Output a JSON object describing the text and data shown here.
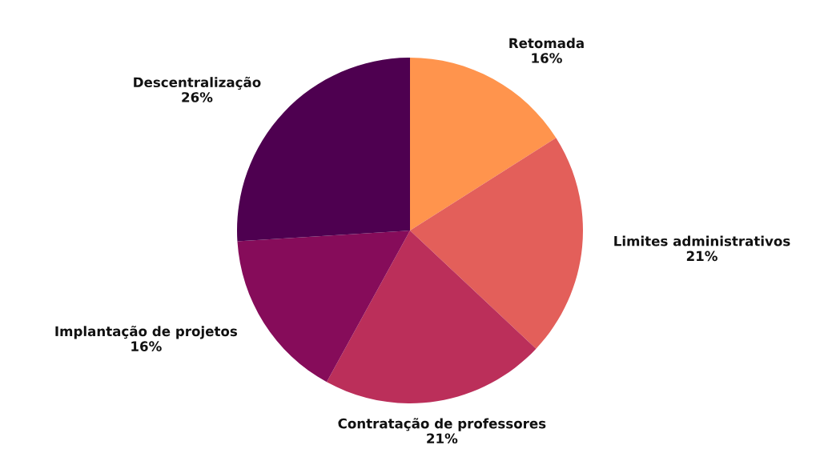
{
  "chart_data": {
    "type": "pie",
    "categories": [
      "Retomada",
      "Limites administrativos",
      "Contratação de professores",
      "Implantação de projetos",
      "Descentralização"
    ],
    "values": [
      16,
      21,
      21,
      16,
      26
    ],
    "value_labels": [
      "16%",
      "21%",
      "21%",
      "16%",
      "26%"
    ],
    "colors": [
      "#ff944d",
      "#e35f5a",
      "#bb2f5a",
      "#860c5a",
      "#4e0050"
    ],
    "legend": false
  }
}
